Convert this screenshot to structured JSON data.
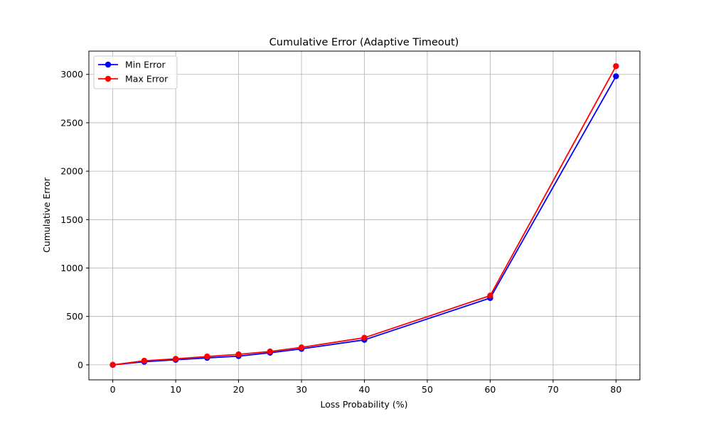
{
  "chart_data": {
    "type": "line",
    "title": "Cumulative Error (Adaptive Timeout)",
    "xlabel": "Loss Probability (%)",
    "ylabel": "Cumulative Error",
    "x": [
      0,
      5,
      10,
      15,
      20,
      25,
      30,
      40,
      60,
      80
    ],
    "xlim": [
      -3.8,
      83.8
    ],
    "ylim": [
      -155,
      3240
    ],
    "xticks": [
      0,
      10,
      20,
      30,
      40,
      50,
      60,
      70,
      80
    ],
    "yticks": [
      0,
      500,
      1000,
      1500,
      2000,
      2500,
      3000
    ],
    "grid": true,
    "legend_position": "top-left",
    "series": [
      {
        "name": "Min Error",
        "color": "#0000ff",
        "marker": "circle",
        "values": [
          0,
          32,
          52,
          72,
          90,
          125,
          165,
          258,
          690,
          2980
        ]
      },
      {
        "name": "Max Error",
        "color": "#ff0000",
        "marker": "circle",
        "values": [
          0,
          42,
          62,
          86,
          108,
          138,
          180,
          280,
          715,
          3085
        ]
      }
    ]
  }
}
